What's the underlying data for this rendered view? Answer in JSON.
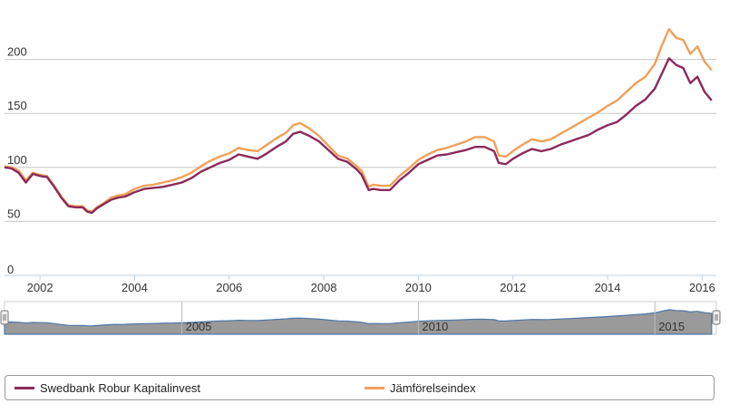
{
  "chart_data": {
    "type": "line",
    "title": "",
    "xlabel": "",
    "ylabel": "",
    "xlim": [
      2001.25,
      2016.3
    ],
    "ylim": [
      0,
      250
    ],
    "yticks": [
      0,
      50,
      100,
      150,
      200
    ],
    "xticks": [
      "2002",
      "2004",
      "2006",
      "2008",
      "2010",
      "2012",
      "2014",
      "2016"
    ],
    "grid": "horizontal",
    "legend_position": "bottom",
    "navigator_labels": [
      "2005",
      "2010",
      "2015"
    ],
    "series": [
      {
        "name": "Swedbank Robur Kapitalinvest",
        "color": "#8b2a5a",
        "x": [
          2001.25,
          2001.4,
          2001.55,
          2001.7,
          2001.85,
          2002.0,
          2002.15,
          2002.3,
          2002.45,
          2002.6,
          2002.75,
          2002.9,
          2003.0,
          2003.1,
          2003.2,
          2003.35,
          2003.5,
          2003.65,
          2003.8,
          2004.0,
          2004.2,
          2004.4,
          2004.6,
          2004.8,
          2005.0,
          2005.2,
          2005.4,
          2005.6,
          2005.8,
          2006.0,
          2006.2,
          2006.4,
          2006.6,
          2006.8,
          2007.0,
          2007.2,
          2007.35,
          2007.5,
          2007.7,
          2007.9,
          2008.1,
          2008.3,
          2008.5,
          2008.7,
          2008.8,
          2008.95,
          2009.05,
          2009.2,
          2009.4,
          2009.6,
          2009.8,
          2010.0,
          2010.2,
          2010.4,
          2010.6,
          2010.8,
          2011.0,
          2011.2,
          2011.4,
          2011.5,
          2011.6,
          2011.7,
          2011.85,
          2012.0,
          2012.2,
          2012.4,
          2012.6,
          2012.8,
          2013.0,
          2013.2,
          2013.4,
          2013.6,
          2013.8,
          2014.0,
          2014.2,
          2014.4,
          2014.6,
          2014.8,
          2015.0,
          2015.15,
          2015.3,
          2015.45,
          2015.6,
          2015.75,
          2015.9,
          2016.05,
          2016.2
        ],
        "y": [
          100,
          99,
          95,
          86,
          94,
          92,
          91,
          82,
          72,
          64,
          63,
          63,
          59,
          58,
          62,
          66,
          70,
          72,
          73,
          77,
          80,
          81,
          82,
          84,
          86,
          90,
          96,
          100,
          104,
          107,
          112,
          110,
          108,
          113,
          119,
          124,
          131,
          133,
          129,
          124,
          116,
          108,
          105,
          98,
          93,
          79,
          80,
          79,
          79,
          88,
          95,
          103,
          107,
          111,
          112,
          114,
          116,
          119,
          119,
          117,
          115,
          104,
          103,
          108,
          113,
          117,
          115,
          117,
          121,
          124,
          127,
          130,
          135,
          139,
          142,
          149,
          157,
          163,
          173,
          187,
          201,
          195,
          192,
          178,
          184,
          170,
          162
        ]
      },
      {
        "name": "Jämförelseindex",
        "color": "#f0a05a",
        "x": [
          2001.25,
          2001.4,
          2001.55,
          2001.7,
          2001.85,
          2002.0,
          2002.15,
          2002.3,
          2002.45,
          2002.6,
          2002.75,
          2002.9,
          2003.0,
          2003.1,
          2003.2,
          2003.35,
          2003.5,
          2003.65,
          2003.8,
          2004.0,
          2004.2,
          2004.4,
          2004.6,
          2004.8,
          2005.0,
          2005.2,
          2005.4,
          2005.6,
          2005.8,
          2006.0,
          2006.2,
          2006.4,
          2006.6,
          2006.8,
          2007.0,
          2007.2,
          2007.35,
          2007.5,
          2007.7,
          2007.9,
          2008.1,
          2008.3,
          2008.5,
          2008.7,
          2008.8,
          2008.95,
          2009.05,
          2009.2,
          2009.4,
          2009.6,
          2009.8,
          2010.0,
          2010.2,
          2010.4,
          2010.6,
          2010.8,
          2011.0,
          2011.2,
          2011.4,
          2011.5,
          2011.6,
          2011.7,
          2011.85,
          2012.0,
          2012.2,
          2012.4,
          2012.6,
          2012.8,
          2013.0,
          2013.2,
          2013.4,
          2013.6,
          2013.8,
          2014.0,
          2014.2,
          2014.4,
          2014.6,
          2014.8,
          2015.0,
          2015.15,
          2015.3,
          2015.45,
          2015.6,
          2015.75,
          2015.9,
          2016.05,
          2016.2
        ],
        "y": [
          101,
          100,
          97,
          88,
          95,
          93,
          92,
          83,
          73,
          65,
          64,
          64,
          60,
          59,
          63,
          67,
          72,
          74,
          75,
          80,
          83,
          84,
          86,
          88,
          91,
          95,
          101,
          106,
          110,
          113,
          118,
          116,
          115,
          121,
          127,
          132,
          139,
          141,
          136,
          129,
          120,
          111,
          108,
          101,
          97,
          82,
          84,
          83,
          83,
          92,
          99,
          107,
          112,
          116,
          118,
          121,
          124,
          128,
          128,
          126,
          124,
          111,
          110,
          115,
          121,
          126,
          124,
          126,
          131,
          136,
          141,
          146,
          151,
          157,
          162,
          170,
          178,
          184,
          196,
          213,
          228,
          220,
          218,
          205,
          212,
          198,
          190
        ]
      }
    ]
  }
}
